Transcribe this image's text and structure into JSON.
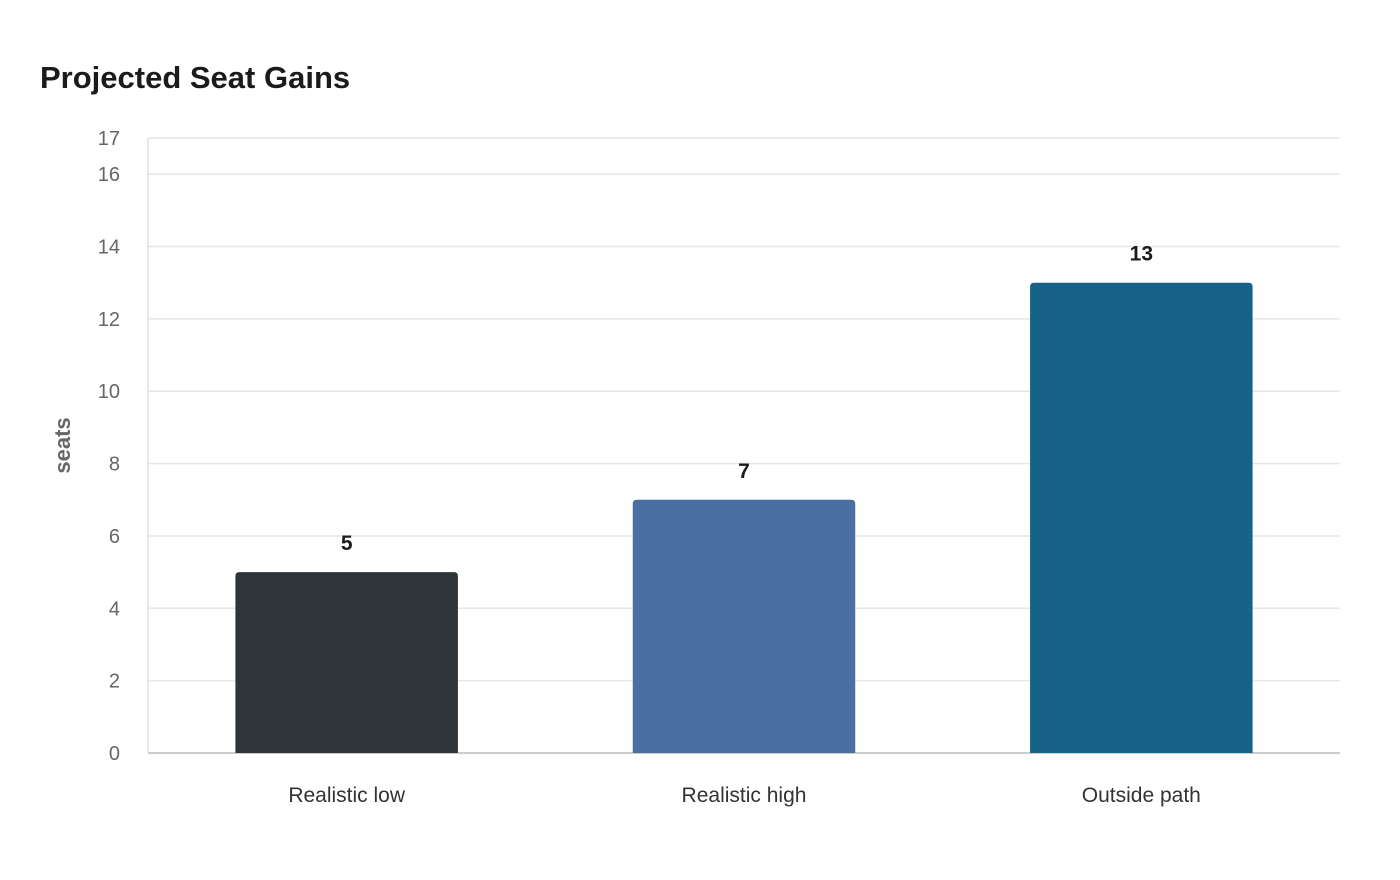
{
  "chart_data": {
    "type": "bar",
    "title": "Projected Seat Gains",
    "xlabel": "",
    "ylabel": "seats",
    "categories": [
      "Realistic low",
      "Realistic high",
      "Outside path"
    ],
    "values": [
      5,
      7,
      13
    ],
    "data_labels": [
      "5",
      "7",
      "13"
    ],
    "colors": [
      "#2e3538",
      "#4b6fa3",
      "#176289"
    ],
    "ylim": [
      0,
      17
    ],
    "yticks": [
      0,
      2,
      4,
      6,
      8,
      10,
      12,
      14,
      16,
      17
    ],
    "grid": true,
    "legend": "none"
  }
}
